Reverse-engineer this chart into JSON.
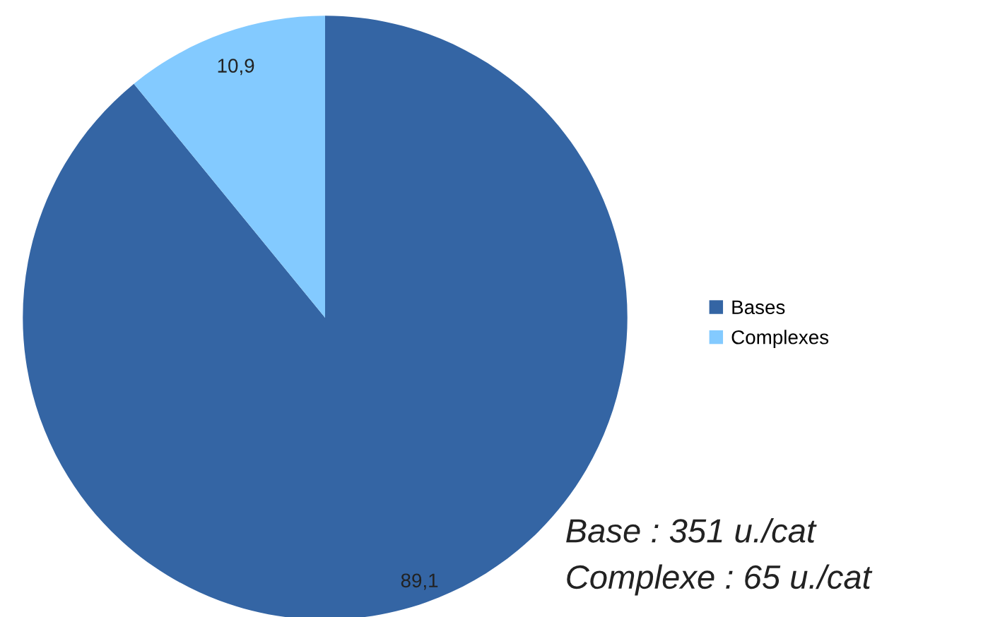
{
  "chart_data": {
    "type": "pie",
    "categories": [
      "Bases",
      "Complexes"
    ],
    "values": [
      89.1,
      10.9
    ],
    "value_labels": [
      "89,1",
      "10,9"
    ],
    "colors": [
      "#3465a4",
      "#83caff"
    ],
    "legend": "right",
    "annotations": [
      "Base : 351 u./cat",
      "Complexe : 65 u./cat"
    ]
  }
}
